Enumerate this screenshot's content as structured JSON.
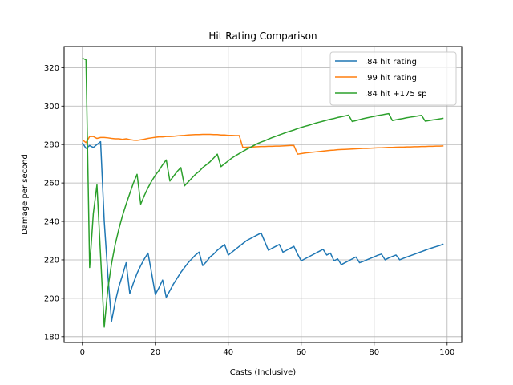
{
  "chart_data": {
    "type": "line",
    "title": "Hit Rating Comparison",
    "xlabel": "Casts (Inclusive)",
    "ylabel": "Damage per second",
    "xlim": [
      -5,
      104
    ],
    "ylim": [
      177,
      331
    ],
    "x_ticks": [
      0,
      20,
      40,
      60,
      80,
      100
    ],
    "y_ticks": [
      180,
      200,
      220,
      240,
      260,
      280,
      300,
      320
    ],
    "grid": true,
    "legend_position": "top-right",
    "series": [
      {
        "name": ".84 hit rating",
        "color": "#1f77b4",
        "points": [
          [
            0,
            281
          ],
          [
            1,
            278
          ],
          [
            2,
            279.5
          ],
          [
            3,
            278.5
          ],
          [
            4,
            280
          ],
          [
            5,
            281.5
          ],
          [
            6,
            240
          ],
          [
            7,
            212
          ],
          [
            8,
            188
          ],
          [
            9,
            198
          ],
          [
            10,
            206
          ],
          [
            11,
            212
          ],
          [
            12,
            218.5
          ],
          [
            13,
            202.5
          ],
          [
            14,
            208
          ],
          [
            15,
            213
          ],
          [
            16,
            217
          ],
          [
            17,
            220.5
          ],
          [
            18,
            223.5
          ],
          [
            19,
            213
          ],
          [
            20,
            202
          ],
          [
            21,
            205.5
          ],
          [
            22,
            209.5
          ],
          [
            23,
            200.5
          ],
          [
            24,
            204
          ],
          [
            25,
            207.5
          ],
          [
            26,
            210.5
          ],
          [
            27,
            213.5
          ],
          [
            28,
            216
          ],
          [
            29,
            218.5
          ],
          [
            30,
            220.5
          ],
          [
            31,
            222.5
          ],
          [
            32,
            224
          ],
          [
            33,
            217
          ],
          [
            34,
            219
          ],
          [
            35,
            221.5
          ],
          [
            36,
            223
          ],
          [
            37,
            225
          ],
          [
            38,
            226.5
          ],
          [
            39,
            228
          ],
          [
            40,
            222.5
          ],
          [
            41,
            224
          ],
          [
            42,
            225.5
          ],
          [
            43,
            227
          ],
          [
            44,
            228.5
          ],
          [
            45,
            230
          ],
          [
            46,
            231
          ],
          [
            47,
            232
          ],
          [
            48,
            233
          ],
          [
            49,
            234
          ],
          [
            50,
            229.5
          ],
          [
            51,
            225
          ],
          [
            52,
            226
          ],
          [
            53,
            227
          ],
          [
            54,
            228
          ],
          [
            55,
            224
          ],
          [
            56,
            225
          ],
          [
            57,
            226
          ],
          [
            58,
            227
          ],
          [
            59,
            223
          ],
          [
            60,
            219.5
          ],
          [
            61,
            220.5
          ],
          [
            62,
            221.5
          ],
          [
            63,
            222.5
          ],
          [
            64,
            223.5
          ],
          [
            65,
            224.5
          ],
          [
            66,
            225.5
          ],
          [
            67,
            222.5
          ],
          [
            68,
            223.5
          ],
          [
            69,
            219.5
          ],
          [
            70,
            220.5
          ],
          [
            71,
            217.5
          ],
          [
            72,
            218.5
          ],
          [
            73,
            219.5
          ],
          [
            74,
            220.5
          ],
          [
            75,
            221.5
          ],
          [
            76,
            218.5
          ],
          [
            77,
            219.2
          ],
          [
            78,
            220
          ],
          [
            79,
            220.8
          ],
          [
            80,
            221.6
          ],
          [
            81,
            222.4
          ],
          [
            82,
            223
          ],
          [
            83,
            220
          ],
          [
            84,
            221
          ],
          [
            85,
            221.8
          ],
          [
            86,
            222.5
          ],
          [
            87,
            220
          ],
          [
            88,
            220.8
          ],
          [
            89,
            221.5
          ],
          [
            90,
            222.2
          ],
          [
            91,
            222.9
          ],
          [
            92,
            223.6
          ],
          [
            93,
            224.3
          ],
          [
            94,
            225
          ],
          [
            95,
            225.7
          ],
          [
            96,
            226.3
          ],
          [
            97,
            226.9
          ],
          [
            98,
            227.5
          ],
          [
            99,
            228.2
          ]
        ]
      },
      {
        "name": ".99 hit rating",
        "color": "#ff7f0e",
        "points": [
          [
            0,
            282.5
          ],
          [
            1,
            281
          ],
          [
            2,
            284.2
          ],
          [
            3,
            284.2
          ],
          [
            4,
            283.2
          ],
          [
            5,
            283.7
          ],
          [
            6,
            283.7
          ],
          [
            7,
            283.5
          ],
          [
            8,
            283.2
          ],
          [
            9,
            283
          ],
          [
            10,
            283
          ],
          [
            11,
            282.7
          ],
          [
            12,
            283
          ],
          [
            13,
            282.6
          ],
          [
            14,
            282.3
          ],
          [
            15,
            282.2
          ],
          [
            16,
            282.5
          ],
          [
            17,
            282.8
          ],
          [
            18,
            283.2
          ],
          [
            19,
            283.5
          ],
          [
            20,
            283.8
          ],
          [
            21,
            284
          ],
          [
            22,
            284
          ],
          [
            23,
            284.2
          ],
          [
            24,
            284.2
          ],
          [
            25,
            284.3
          ],
          [
            26,
            284.5
          ],
          [
            27,
            284.7
          ],
          [
            28,
            284.8
          ],
          [
            29,
            285
          ],
          [
            30,
            285.1
          ],
          [
            31,
            285.2
          ],
          [
            32,
            285.2
          ],
          [
            33,
            285.3
          ],
          [
            34,
            285.3
          ],
          [
            35,
            285.3
          ],
          [
            36,
            285.2
          ],
          [
            37,
            285.2
          ],
          [
            38,
            285
          ],
          [
            39,
            285
          ],
          [
            40,
            284.8
          ],
          [
            41,
            284.8
          ],
          [
            42,
            284.7
          ],
          [
            43,
            284.7
          ],
          [
            44,
            278.5
          ],
          [
            45,
            278.6
          ],
          [
            46,
            278.7
          ],
          [
            47,
            278.8
          ],
          [
            48,
            278.9
          ],
          [
            49,
            279
          ],
          [
            50,
            279
          ],
          [
            51,
            279.1
          ],
          [
            52,
            279.1
          ],
          [
            53,
            279.2
          ],
          [
            54,
            279.2
          ],
          [
            55,
            279.3
          ],
          [
            56,
            279.4
          ],
          [
            57,
            279.5
          ],
          [
            58,
            279.5
          ],
          [
            59,
            275
          ],
          [
            60,
            275.3
          ],
          [
            61,
            275.6
          ],
          [
            62,
            275.8
          ],
          [
            63,
            276
          ],
          [
            64,
            276.2
          ],
          [
            65,
            276.4
          ],
          [
            66,
            276.6
          ],
          [
            67,
            276.8
          ],
          [
            68,
            277
          ],
          [
            69,
            277.1
          ],
          [
            70,
            277.3
          ],
          [
            71,
            277.4
          ],
          [
            72,
            277.5
          ],
          [
            73,
            277.6
          ],
          [
            74,
            277.7
          ],
          [
            75,
            277.8
          ],
          [
            76,
            277.9
          ],
          [
            77,
            278
          ],
          [
            78,
            278
          ],
          [
            79,
            278.1
          ],
          [
            80,
            278.2
          ],
          [
            81,
            278.3
          ],
          [
            82,
            278.3
          ],
          [
            83,
            278.4
          ],
          [
            84,
            278.5
          ],
          [
            85,
            278.5
          ],
          [
            86,
            278.6
          ],
          [
            87,
            278.7
          ],
          [
            88,
            278.7
          ],
          [
            89,
            278.8
          ],
          [
            90,
            278.8
          ],
          [
            91,
            278.9
          ],
          [
            92,
            278.9
          ],
          [
            93,
            279
          ],
          [
            94,
            279
          ],
          [
            95,
            279.1
          ],
          [
            96,
            279.1
          ],
          [
            97,
            279.2
          ],
          [
            98,
            279.2
          ],
          [
            99,
            279.3
          ]
        ]
      },
      {
        "name": ".84 hit +175 sp",
        "color": "#2ca02c",
        "points": [
          [
            0,
            325
          ],
          [
            1,
            324
          ],
          [
            2,
            216
          ],
          [
            3,
            244
          ],
          [
            4,
            259
          ],
          [
            5,
            222
          ],
          [
            6,
            185
          ],
          [
            7,
            205
          ],
          [
            8,
            218
          ],
          [
            9,
            228
          ],
          [
            10,
            236
          ],
          [
            11,
            243
          ],
          [
            12,
            249
          ],
          [
            13,
            254.5
          ],
          [
            14,
            260
          ],
          [
            15,
            264.5
          ],
          [
            16,
            249
          ],
          [
            17,
            253.5
          ],
          [
            18,
            257.5
          ],
          [
            19,
            261
          ],
          [
            20,
            264
          ],
          [
            21,
            266.5
          ],
          [
            22,
            269.5
          ],
          [
            23,
            272
          ],
          [
            24,
            261
          ],
          [
            25,
            263.5
          ],
          [
            26,
            266
          ],
          [
            27,
            268
          ],
          [
            28,
            258.5
          ],
          [
            29,
            260.5
          ],
          [
            30,
            262.5
          ],
          [
            31,
            264.5
          ],
          [
            32,
            266
          ],
          [
            33,
            268
          ],
          [
            34,
            269.5
          ],
          [
            35,
            271
          ],
          [
            36,
            273
          ],
          [
            37,
            275
          ],
          [
            38,
            268.5
          ],
          [
            39,
            270
          ],
          [
            40,
            271.5
          ],
          [
            41,
            273
          ],
          [
            42,
            274.2
          ],
          [
            43,
            275.3
          ],
          [
            44,
            276.4
          ],
          [
            45,
            277.5
          ],
          [
            46,
            278.5
          ],
          [
            47,
            279.5
          ],
          [
            48,
            280.5
          ],
          [
            49,
            281.3
          ],
          [
            50,
            282
          ],
          [
            51,
            282.8
          ],
          [
            52,
            283.6
          ],
          [
            53,
            284.3
          ],
          [
            54,
            285
          ],
          [
            55,
            285.7
          ],
          [
            56,
            286.4
          ],
          [
            57,
            287
          ],
          [
            58,
            287.6
          ],
          [
            59,
            288.3
          ],
          [
            60,
            288.9
          ],
          [
            61,
            289.5
          ],
          [
            62,
            290
          ],
          [
            63,
            290.6
          ],
          [
            64,
            291.2
          ],
          [
            65,
            291.7
          ],
          [
            66,
            292.2
          ],
          [
            67,
            292.7
          ],
          [
            68,
            293.2
          ],
          [
            69,
            293.6
          ],
          [
            70,
            294.1
          ],
          [
            71,
            294.5
          ],
          [
            72,
            294.9
          ],
          [
            73,
            295.3
          ],
          [
            74,
            292
          ],
          [
            75,
            292.5
          ],
          [
            76,
            293
          ],
          [
            77,
            293.5
          ],
          [
            78,
            293.9
          ],
          [
            79,
            294.3
          ],
          [
            80,
            294.7
          ],
          [
            81,
            295.1
          ],
          [
            82,
            295.4
          ],
          [
            83,
            295.8
          ],
          [
            84,
            296.1
          ],
          [
            85,
            292.5
          ],
          [
            86,
            292.9
          ],
          [
            87,
            293.3
          ],
          [
            88,
            293.6
          ],
          [
            89,
            294
          ],
          [
            90,
            294.3
          ],
          [
            91,
            294.6
          ],
          [
            92,
            294.9
          ],
          [
            93,
            295.2
          ],
          [
            94,
            292.2
          ],
          [
            95,
            292.5
          ],
          [
            96,
            292.8
          ],
          [
            97,
            293.1
          ],
          [
            98,
            293.4
          ],
          [
            99,
            293.7
          ]
        ]
      }
    ]
  }
}
